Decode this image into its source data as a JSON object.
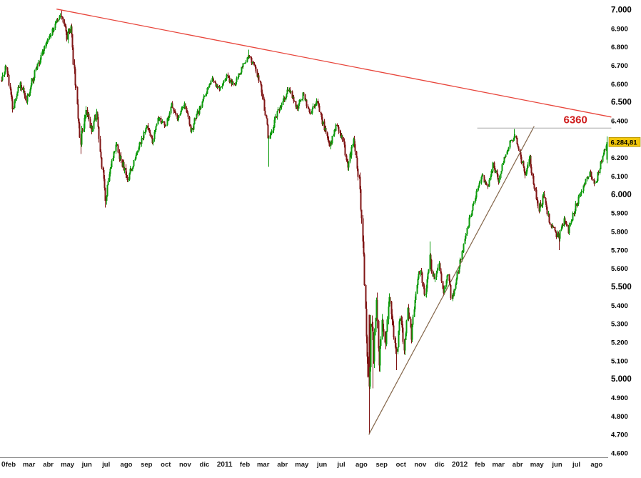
{
  "chart_data": {
    "type": "candlestick",
    "days": 660,
    "seed": 20120810,
    "last": {
      "value": 6284.81,
      "label": "6.284,81"
    },
    "annotations": {
      "resistance_label": "6360",
      "resistance_level": 6360,
      "label_day": 612
    },
    "colors": {
      "up": "#0c9b0c",
      "down": "#801515",
      "trend_red": "#e8463c",
      "trend_brown": "#84664a",
      "resistance_gray": "#a8a8a8",
      "tag_bg": "#f3c80b",
      "tag_border": "#9a7d00",
      "axis_text": "#000000",
      "x_axis_text": "#1a1a1a",
      "axis_line": "#8c8c8c",
      "annotation_red": "#cf1f1f"
    },
    "y_axis": {
      "range": [
        4600,
        7000
      ],
      "major_every": 500,
      "ticks": [
        "7.000",
        "6.900",
        "6.800",
        "6.700",
        "6.600",
        "6.500",
        "6.400",
        "6.300",
        "6.200",
        "6.100",
        "6.000",
        "5.900",
        "5.800",
        "5.700",
        "5.600",
        "5.500",
        "5.400",
        "5.300",
        "5.200",
        "5.100",
        "5.000",
        "4.900",
        "4.800",
        "4.700",
        "4.600"
      ]
    },
    "x_axis": {
      "labels": [
        {
          "d": 0,
          "t": "0",
          "bold": true,
          "anchor": "start"
        },
        {
          "d": 10,
          "t": "feb"
        },
        {
          "d": 30,
          "t": "mar"
        },
        {
          "d": 51,
          "t": "abr"
        },
        {
          "d": 72,
          "t": "may"
        },
        {
          "d": 93,
          "t": "jun"
        },
        {
          "d": 114,
          "t": "jul"
        },
        {
          "d": 136,
          "t": "ago"
        },
        {
          "d": 158,
          "t": "sep"
        },
        {
          "d": 179,
          "t": "oct"
        },
        {
          "d": 200,
          "t": "nov"
        },
        {
          "d": 221,
          "t": "dic"
        },
        {
          "d": 243,
          "t": "2011",
          "bold": true
        },
        {
          "d": 265,
          "t": "feb"
        },
        {
          "d": 285,
          "t": "mar"
        },
        {
          "d": 306,
          "t": "abr"
        },
        {
          "d": 327,
          "t": "may"
        },
        {
          "d": 349,
          "t": "jun"
        },
        {
          "d": 370,
          "t": "jul"
        },
        {
          "d": 392,
          "t": "ago"
        },
        {
          "d": 414,
          "t": "sep"
        },
        {
          "d": 435,
          "t": "oct"
        },
        {
          "d": 456,
          "t": "nov"
        },
        {
          "d": 477,
          "t": "dic"
        },
        {
          "d": 499,
          "t": "2012",
          "bold": true
        },
        {
          "d": 521,
          "t": "feb"
        },
        {
          "d": 541,
          "t": "mar"
        },
        {
          "d": 562,
          "t": "abr"
        },
        {
          "d": 583,
          "t": "may"
        },
        {
          "d": 605,
          "t": "jun"
        },
        {
          "d": 626,
          "t": "jul"
        },
        {
          "d": 648,
          "t": "ago"
        }
      ]
    },
    "lines": [
      {
        "name": "descending-trendline",
        "d1": 60,
        "p1": 7005,
        "d2": 664,
        "p2": 6420,
        "color": "trend_red",
        "width": 1.3
      },
      {
        "name": "ascending-trendline",
        "d1": 400,
        "p1": 4700,
        "d2": 580,
        "p2": 6370,
        "color": "trend_brown",
        "width": 1.2
      },
      {
        "name": "resistance-line",
        "d1": 518,
        "p1": 6360,
        "d2": 664,
        "p2": 6360,
        "color": "resistance_gray",
        "width": 1
      }
    ],
    "anchors": [
      [
        0,
        6620,
        40
      ],
      [
        5,
        6700,
        35
      ],
      [
        12,
        6470,
        35
      ],
      [
        20,
        6600,
        30
      ],
      [
        27,
        6520,
        30
      ],
      [
        36,
        6660,
        30
      ],
      [
        46,
        6790,
        30
      ],
      [
        56,
        6900,
        28
      ],
      [
        65,
        6975,
        25
      ],
      [
        71,
        6850,
        40
      ],
      [
        75,
        6910,
        35
      ],
      [
        80,
        6600,
        60
      ],
      [
        86,
        6290,
        55
      ],
      [
        92,
        6470,
        45
      ],
      [
        98,
        6340,
        40
      ],
      [
        103,
        6450,
        38
      ],
      [
        108,
        6200,
        42
      ],
      [
        113,
        5980,
        45
      ],
      [
        118,
        6120,
        40
      ],
      [
        124,
        6280,
        35
      ],
      [
        130,
        6180,
        35
      ],
      [
        137,
        6090,
        38
      ],
      [
        143,
        6160,
        32
      ],
      [
        150,
        6280,
        30
      ],
      [
        158,
        6360,
        28
      ],
      [
        164,
        6290,
        28
      ],
      [
        171,
        6420,
        26
      ],
      [
        178,
        6370,
        26
      ],
      [
        185,
        6480,
        26
      ],
      [
        192,
        6400,
        28
      ],
      [
        199,
        6500,
        26
      ],
      [
        206,
        6340,
        30
      ],
      [
        213,
        6440,
        26
      ],
      [
        221,
        6540,
        24
      ],
      [
        229,
        6620,
        22
      ],
      [
        237,
        6570,
        22
      ],
      [
        245,
        6640,
        22
      ],
      [
        253,
        6590,
        24
      ],
      [
        261,
        6680,
        22
      ],
      [
        269,
        6760,
        22
      ],
      [
        277,
        6670,
        26
      ],
      [
        284,
        6540,
        32
      ],
      [
        291,
        6290,
        40
      ],
      [
        298,
        6420,
        32
      ],
      [
        306,
        6500,
        28
      ],
      [
        313,
        6580,
        26
      ],
      [
        321,
        6470,
        28
      ],
      [
        328,
        6540,
        26
      ],
      [
        336,
        6440,
        28
      ],
      [
        343,
        6500,
        26
      ],
      [
        350,
        6380,
        30
      ],
      [
        357,
        6260,
        32
      ],
      [
        364,
        6380,
        30
      ],
      [
        371,
        6300,
        30
      ],
      [
        377,
        6160,
        35
      ],
      [
        383,
        6300,
        32
      ],
      [
        389,
        6080,
        45
      ],
      [
        394,
        5680,
        80
      ],
      [
        397,
        5280,
        90
      ],
      [
        400,
        4880,
        100
      ],
      [
        402,
        5320,
        90
      ],
      [
        405,
        5120,
        80
      ],
      [
        408,
        5420,
        75
      ],
      [
        411,
        5060,
        75
      ],
      [
        414,
        5330,
        70
      ],
      [
        418,
        5180,
        65
      ],
      [
        422,
        5470,
        60
      ],
      [
        426,
        5280,
        60
      ],
      [
        430,
        5130,
        55
      ],
      [
        434,
        5340,
        50
      ],
      [
        438,
        5170,
        50
      ],
      [
        442,
        5380,
        45
      ],
      [
        446,
        5240,
        45
      ],
      [
        451,
        5480,
        42
      ],
      [
        456,
        5600,
        40
      ],
      [
        461,
        5440,
        40
      ],
      [
        466,
        5660,
        38
      ],
      [
        471,
        5520,
        38
      ],
      [
        476,
        5610,
        36
      ],
      [
        481,
        5470,
        36
      ],
      [
        486,
        5580,
        34
      ],
      [
        490,
        5420,
        36
      ],
      [
        495,
        5540,
        32
      ],
      [
        500,
        5660,
        30
      ],
      [
        505,
        5780,
        30
      ],
      [
        511,
        5900,
        28
      ],
      [
        517,
        6010,
        26
      ],
      [
        523,
        6100,
        26
      ],
      [
        529,
        6030,
        26
      ],
      [
        535,
        6160,
        24
      ],
      [
        541,
        6080,
        26
      ],
      [
        547,
        6190,
        24
      ],
      [
        553,
        6280,
        22
      ],
      [
        559,
        6320,
        22
      ],
      [
        565,
        6210,
        26
      ],
      [
        570,
        6100,
        30
      ],
      [
        575,
        6200,
        28
      ],
      [
        580,
        6030,
        32
      ],
      [
        585,
        5920,
        34
      ],
      [
        590,
        5990,
        32
      ],
      [
        596,
        5860,
        34
      ],
      [
        602,
        5800,
        34
      ],
      [
        607,
        5770,
        34
      ],
      [
        612,
        5870,
        30
      ],
      [
        617,
        5800,
        30
      ],
      [
        623,
        5910,
        28
      ],
      [
        629,
        5990,
        26
      ],
      [
        635,
        6060,
        26
      ],
      [
        641,
        6120,
        24
      ],
      [
        646,
        6050,
        26
      ],
      [
        651,
        6150,
        24
      ],
      [
        655,
        6220,
        22
      ],
      [
        659,
        6284.81,
        20
      ]
    ],
    "pins": [
      {
        "day": 65,
        "high": 7000
      },
      {
        "day": 86,
        "low": 6220
      },
      {
        "day": 113,
        "low": 5930
      },
      {
        "day": 269,
        "high": 6785
      },
      {
        "day": 291,
        "low": 6150
      },
      {
        "day": 400,
        "open": 5350,
        "close": 4960,
        "low": 4700
      },
      {
        "day": 404,
        "low": 4950
      },
      {
        "day": 430,
        "low": 5050
      },
      {
        "day": 466,
        "high": 5745
      },
      {
        "day": 558,
        "high": 6355
      },
      {
        "day": 607,
        "low": 5700
      },
      {
        "day": 659,
        "open": 6190,
        "close": 6284.81,
        "low": 6170,
        "high": 6315
      }
    ]
  }
}
